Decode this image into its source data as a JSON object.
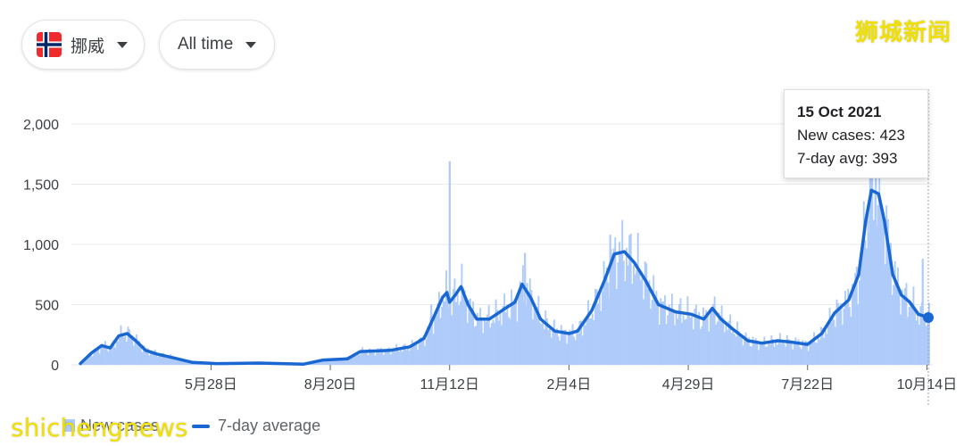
{
  "filters": {
    "country_label": "挪威",
    "range_label": "All time"
  },
  "watermarks": {
    "top": "狮城新闻",
    "bottom": "shichengnews"
  },
  "tooltip": {
    "date": "15 Oct 2021",
    "new_cases_line": "New cases: 423",
    "avg_line": "7-day avg: 393"
  },
  "legend": {
    "new_cases": "New cases",
    "avg": "7-day average"
  },
  "colors": {
    "bar": "#aecbfa",
    "line": "#1967d2",
    "grid": "#e8eaed",
    "axis_text": "#3c4043"
  },
  "chart_data": {
    "type": "area",
    "title": "",
    "xlabel": "",
    "ylabel": "",
    "ylim": [
      0,
      2000
    ],
    "y_ticks": [
      0,
      500,
      1000,
      1500,
      2000
    ],
    "y_tick_labels": [
      "0",
      "500",
      "1,000",
      "1,500",
      "2,000"
    ],
    "x_range": [
      "2020-02-26",
      "2021-10-15"
    ],
    "x_ticks": [
      {
        "date": "2020-05-28",
        "label": "5月28日"
      },
      {
        "date": "2020-08-20",
        "label": "8月20日"
      },
      {
        "date": "2020-11-12",
        "label": "11月12日"
      },
      {
        "date": "2021-02-04",
        "label": "2月4日"
      },
      {
        "date": "2021-04-29",
        "label": "4月29日"
      },
      {
        "date": "2021-07-22",
        "label": "7月22日"
      },
      {
        "date": "2021-10-14",
        "label": "10月14日"
      }
    ],
    "grid": true,
    "legend_position": "bottom-left",
    "series": [
      {
        "name": "7-day average",
        "points": [
          [
            "2020-02-26",
            10
          ],
          [
            "2020-03-05",
            100
          ],
          [
            "2020-03-12",
            160
          ],
          [
            "2020-03-18",
            140
          ],
          [
            "2020-03-24",
            240
          ],
          [
            "2020-03-30",
            260
          ],
          [
            "2020-04-05",
            200
          ],
          [
            "2020-04-12",
            120
          ],
          [
            "2020-04-20",
            90
          ],
          [
            "2020-05-01",
            60
          ],
          [
            "2020-05-15",
            20
          ],
          [
            "2020-06-01",
            10
          ],
          [
            "2020-07-01",
            15
          ],
          [
            "2020-08-01",
            5
          ],
          [
            "2020-08-15",
            40
          ],
          [
            "2020-09-01",
            50
          ],
          [
            "2020-09-10",
            110
          ],
          [
            "2020-10-01",
            120
          ],
          [
            "2020-10-15",
            150
          ],
          [
            "2020-10-25",
            220
          ],
          [
            "2020-11-01",
            400
          ],
          [
            "2020-11-07",
            560
          ],
          [
            "2020-11-10",
            600
          ],
          [
            "2020-11-12",
            520
          ],
          [
            "2020-11-16",
            580
          ],
          [
            "2020-11-20",
            650
          ],
          [
            "2020-11-25",
            500
          ],
          [
            "2020-12-01",
            380
          ],
          [
            "2020-12-10",
            380
          ],
          [
            "2020-12-20",
            460
          ],
          [
            "2020-12-28",
            520
          ],
          [
            "2021-01-02",
            670
          ],
          [
            "2021-01-08",
            560
          ],
          [
            "2021-01-15",
            380
          ],
          [
            "2021-01-25",
            280
          ],
          [
            "2021-02-04",
            260
          ],
          [
            "2021-02-10",
            280
          ],
          [
            "2021-02-20",
            450
          ],
          [
            "2021-03-01",
            700
          ],
          [
            "2021-03-08",
            920
          ],
          [
            "2021-03-15",
            940
          ],
          [
            "2021-03-22",
            850
          ],
          [
            "2021-03-30",
            700
          ],
          [
            "2021-04-08",
            500
          ],
          [
            "2021-04-20",
            440
          ],
          [
            "2021-05-01",
            420
          ],
          [
            "2021-05-10",
            380
          ],
          [
            "2021-05-16",
            470
          ],
          [
            "2021-05-22",
            380
          ],
          [
            "2021-05-30",
            300
          ],
          [
            "2021-06-10",
            200
          ],
          [
            "2021-06-20",
            180
          ],
          [
            "2021-07-01",
            200
          ],
          [
            "2021-07-10",
            190
          ],
          [
            "2021-07-22",
            170
          ],
          [
            "2021-08-01",
            260
          ],
          [
            "2021-08-10",
            430
          ],
          [
            "2021-08-20",
            540
          ],
          [
            "2021-08-27",
            750
          ],
          [
            "2021-09-01",
            1200
          ],
          [
            "2021-09-05",
            1450
          ],
          [
            "2021-09-10",
            1420
          ],
          [
            "2021-09-14",
            1200
          ],
          [
            "2021-09-20",
            750
          ],
          [
            "2021-09-26",
            580
          ],
          [
            "2021-10-02",
            520
          ],
          [
            "2021-10-08",
            420
          ],
          [
            "2021-10-15",
            393
          ]
        ]
      },
      {
        "name": "New cases",
        "spikes": [
          [
            "2020-11-12",
            1690
          ],
          [
            "2021-09-04",
            1600
          ],
          [
            "2021-09-08",
            1560
          ],
          [
            "2021-03-05",
            1080
          ],
          [
            "2021-01-04",
            930
          ],
          [
            "2021-10-11",
            880
          ],
          [
            "2020-10-30",
            500
          ],
          [
            "2021-10-15",
            423
          ]
        ]
      }
    ]
  }
}
